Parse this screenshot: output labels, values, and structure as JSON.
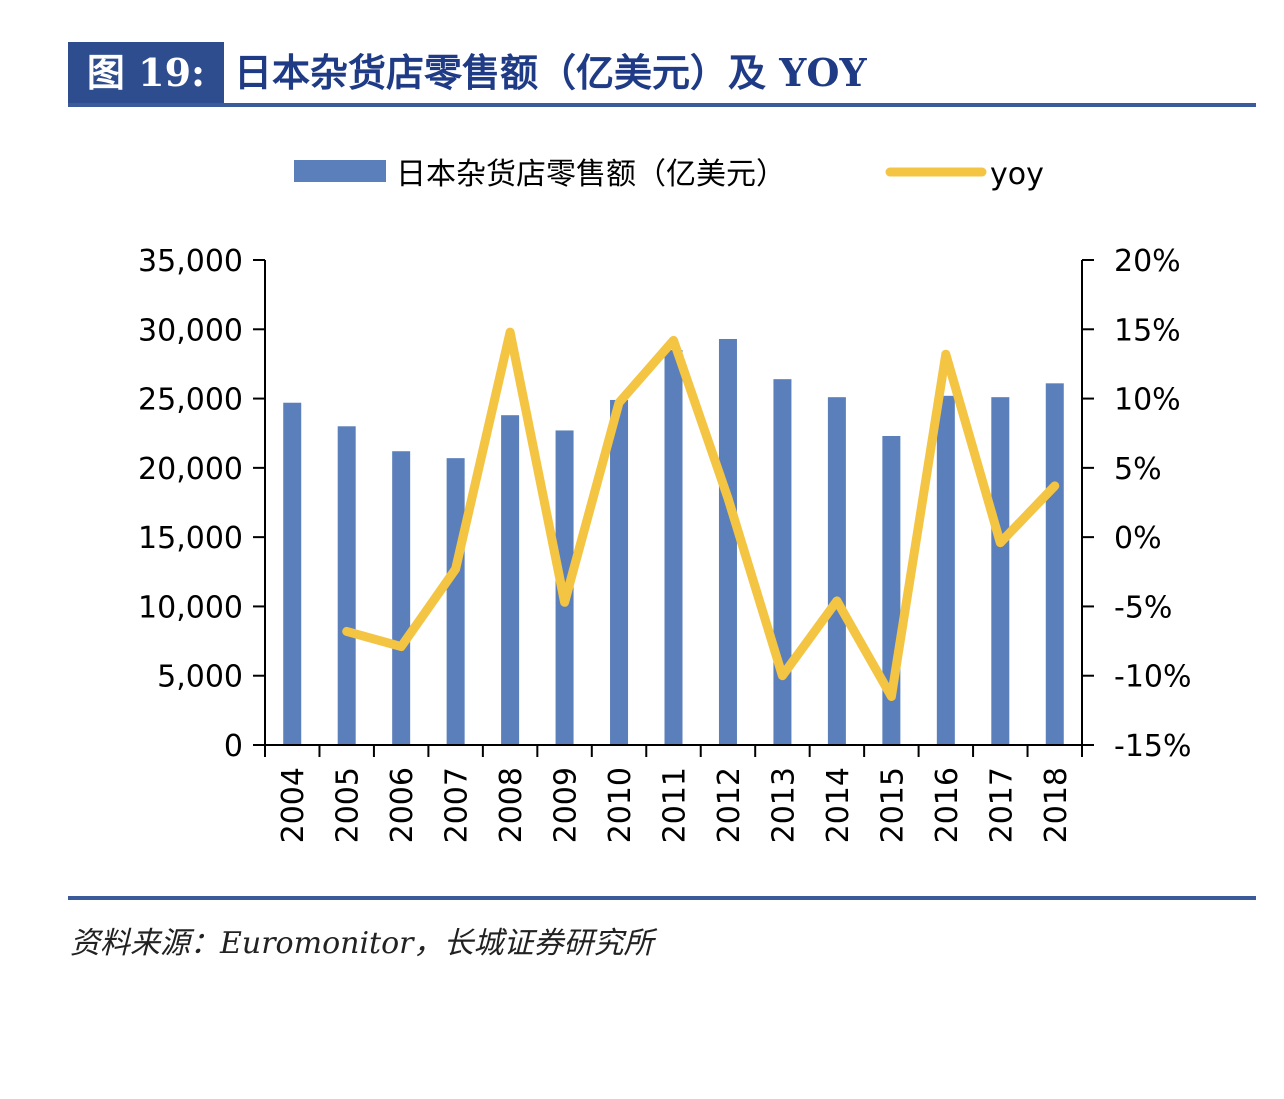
{
  "header": {
    "figure_label": "图 19:",
    "title": "日本杂货店零售额（亿美元）及 YOY"
  },
  "source": "资料来源：Euromonitor，长城证券研究所",
  "colors": {
    "bar": "#5b7fba",
    "line": "#f4c443",
    "accent": "#2e4d8f"
  },
  "chart_data": {
    "type": "bar",
    "categories": [
      "2004",
      "2005",
      "2006",
      "2007",
      "2008",
      "2009",
      "2010",
      "2011",
      "2012",
      "2013",
      "2014",
      "2015",
      "2016",
      "2017",
      "2018"
    ],
    "series": [
      {
        "name": "日本杂货店零售额（亿美元）",
        "type": "bar",
        "axis": "left",
        "values": [
          24700,
          23000,
          21200,
          20700,
          23800,
          22700,
          24900,
          28500,
          29300,
          26400,
          25100,
          22300,
          25200,
          25100,
          26100
        ]
      },
      {
        "name": "yoy",
        "type": "line",
        "axis": "right",
        "values": [
          null,
          -0.068,
          -0.079,
          -0.023,
          0.148,
          -0.047,
          0.097,
          0.142,
          0.028,
          -0.1,
          -0.046,
          -0.115,
          0.132,
          -0.004,
          0.037
        ]
      }
    ],
    "y_left": {
      "min": 0,
      "max": 35000,
      "ticks": [
        "0",
        "5,000",
        "10,000",
        "15,000",
        "20,000",
        "25,000",
        "30,000",
        "35,000"
      ]
    },
    "y_right": {
      "min": -0.15,
      "max": 0.2,
      "ticks": [
        "-15%",
        "-10%",
        "-5%",
        "0%",
        "5%",
        "10%",
        "15%",
        "20%"
      ]
    },
    "legend": {
      "position": "top"
    },
    "grid": false
  }
}
